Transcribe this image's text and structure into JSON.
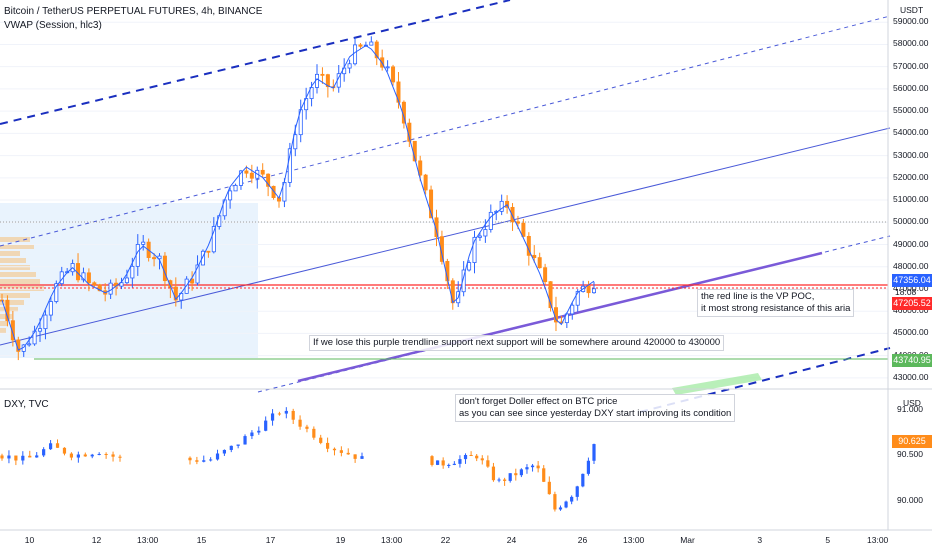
{
  "main": {
    "legend_title": "Bitcoin / TetherUS PERPETUAL FUTURES, 4h, BINANCE",
    "indicator": "VWAP (Session, hlc3)",
    "currency": "USDT",
    "countdown": "18:08",
    "last_price": "47356.04",
    "poc_price": "47205.52",
    "support_price": "43740.95",
    "colors": {
      "up": "#2962ff",
      "down": "#ff8c1a",
      "poc": "#ff2a2a",
      "support": "#5cb85c",
      "trend": "#6b4fd1"
    }
  },
  "dxy": {
    "legend_title": "DXY, TVC",
    "currency": "USD",
    "last_price": "90.625"
  },
  "notes": {
    "poc_note_line1": "the red line is the VP POC,",
    "poc_note_line2": "it most strong resistance of this aria",
    "support_note": "If we lose this purple trendline support next support will be somewhere around 420000 to 430000",
    "dxy_note_line1": "don't forget Doller effect on BTC price",
    "dxy_note_line2": "as you can see since yesterday DXY start improving its condition"
  },
  "chart_data": [
    {
      "type": "candlestick",
      "title": "Bitcoin / TetherUS PERPETUAL FUTURES, 4h, BINANCE",
      "y_ticks": [
        43000,
        44000,
        45000,
        46000,
        47000,
        48000,
        49000,
        50000,
        51000,
        52000,
        53000,
        54000,
        55000,
        56000,
        57000,
        58000,
        59000
      ],
      "y_tick_labels": [
        "43000.00",
        "44000.00",
        "45000.00",
        "46000.00",
        "47000.00",
        "48000.00",
        "49000.00",
        "50000.00",
        "51000.00",
        "52000.00",
        "53000.00",
        "54000.00",
        "55000.00",
        "56000.00",
        "57000.00",
        "58000.00",
        "59000.00"
      ],
      "x_tick_labels": [
        "10",
        "12",
        "13:00",
        "15",
        "17",
        "19",
        "13:00",
        "22",
        "24",
        "26",
        "13:00",
        "Mar",
        "3",
        "5",
        "13:00"
      ],
      "ylim": [
        42500,
        60000
      ],
      "lines": {
        "poc": 47205.52,
        "support": 43740.95
      },
      "close_path": [
        46500,
        44100,
        45200,
        47000,
        48000,
        47200,
        46800,
        47400,
        49000,
        48400,
        46500,
        47600,
        49200,
        51500,
        52500,
        52000,
        51000,
        54800,
        56500,
        56000,
        57500,
        58000,
        57000,
        55000,
        52000,
        49500,
        46000,
        49000,
        50200,
        50800,
        49200,
        47500,
        45200,
        46800,
        47356
      ]
    },
    {
      "type": "candlestick",
      "title": "DXY, TVC",
      "y_ticks": [
        90.0,
        90.5,
        91.0
      ],
      "y_tick_labels": [
        "90.000",
        "90.500",
        "91.000"
      ],
      "ylim": [
        89.7,
        91.2
      ],
      "close_path": [
        90.5,
        90.45,
        90.6,
        90.5,
        90.55,
        90.45,
        90.45,
        90.6,
        90.8,
        91.0,
        90.8,
        90.6,
        90.5,
        90.4,
        90.45,
        90.5,
        90.2,
        90.3,
        90.4,
        89.9,
        90.1,
        90.625
      ]
    }
  ]
}
